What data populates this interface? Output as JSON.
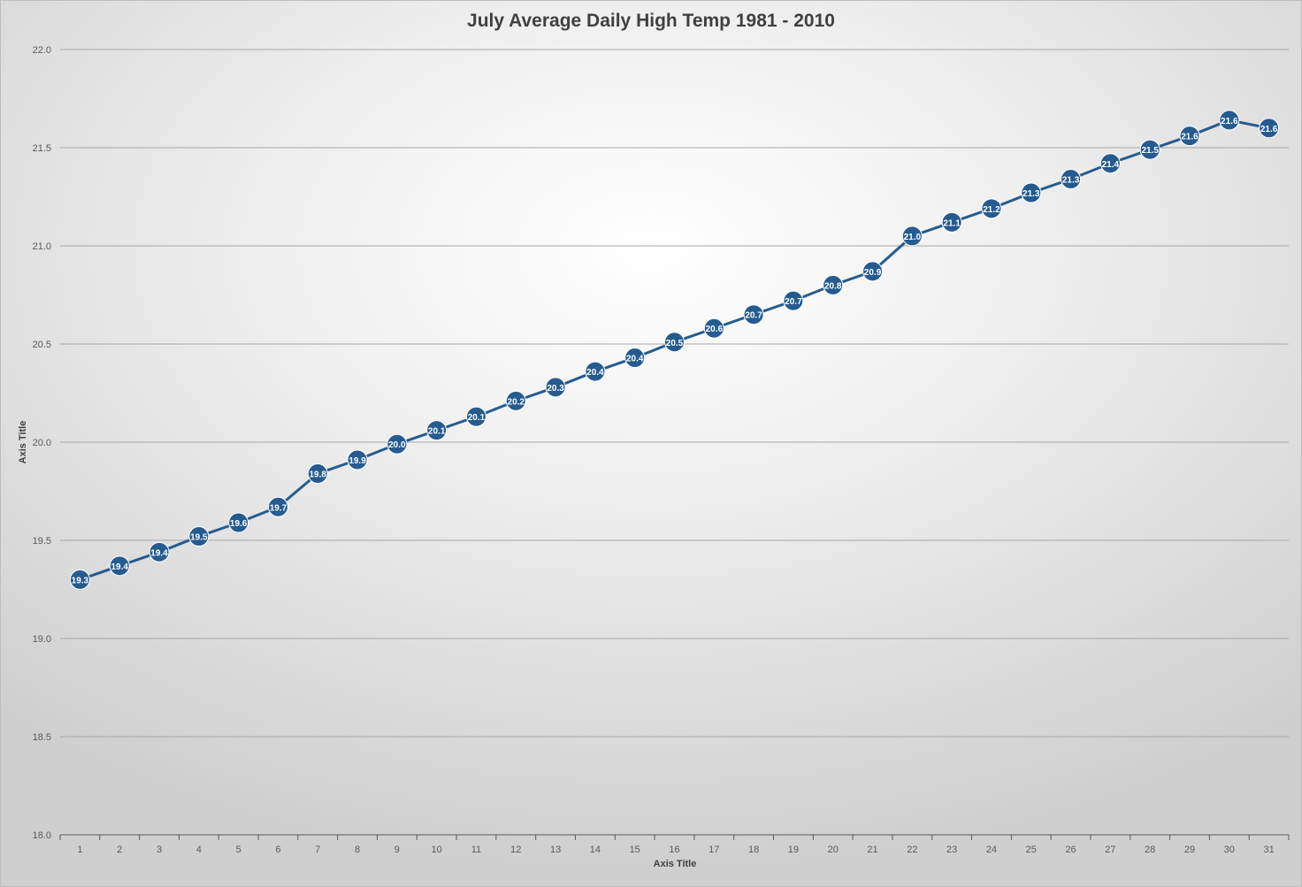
{
  "chart_data": {
    "type": "line",
    "title": "July Average Daily High Temp 1981 - 2010",
    "xlabel": "Axis Title",
    "ylabel": "Axis Title",
    "ylim": [
      18.0,
      22.0
    ],
    "yticks": [
      "18.0",
      "18.5",
      "19.0",
      "19.5",
      "20.0",
      "20.5",
      "21.0",
      "21.5",
      "22.0"
    ],
    "categories": [
      "1",
      "2",
      "3",
      "4",
      "5",
      "6",
      "7",
      "8",
      "9",
      "10",
      "11",
      "12",
      "13",
      "14",
      "15",
      "16",
      "17",
      "18",
      "19",
      "20",
      "21",
      "22",
      "23",
      "24",
      "25",
      "26",
      "27",
      "28",
      "29",
      "30",
      "31"
    ],
    "values": [
      19.3,
      19.37,
      19.44,
      19.52,
      19.59,
      19.67,
      19.84,
      19.91,
      19.99,
      20.06,
      20.13,
      20.21,
      20.28,
      20.36,
      20.43,
      20.51,
      20.58,
      20.65,
      20.72,
      20.8,
      20.87,
      21.05,
      21.12,
      21.19,
      21.27,
      21.34,
      21.42,
      21.49,
      21.56,
      21.64,
      21.6
    ],
    "data_labels": [
      "19.3",
      "19.4",
      "19.4",
      "19.5",
      "19.6",
      "19.7",
      "19.8",
      "19.9",
      "20.0",
      "20.1",
      "20.1",
      "20.2",
      "20.3",
      "20.4",
      "20.4",
      "20.5",
      "20.6",
      "20.7",
      "20.7",
      "20.8",
      "20.9",
      "21.0",
      "21.1",
      "21.2",
      "21.3",
      "21.3",
      "21.4",
      "21.5",
      "21.6",
      "21.6",
      "21.6"
    ],
    "grid": true,
    "legend": "none",
    "colors": {
      "line": "#265b8f",
      "marker": "#265b8f",
      "label": "#ffffff",
      "grid": "#a6a6a6"
    }
  }
}
